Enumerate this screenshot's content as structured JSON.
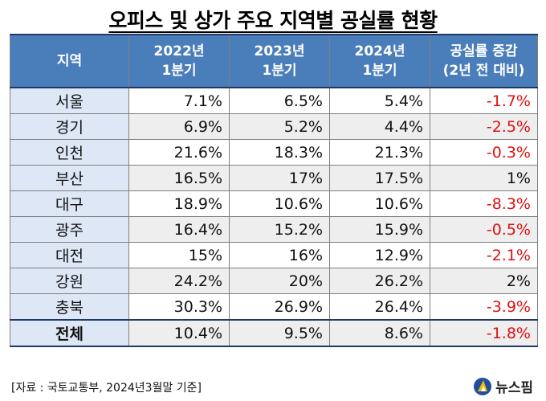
{
  "title": "오피스 및 상가 주요 지역별 공실률 현황",
  "table": {
    "headers": [
      "지역",
      "2022년\n1분기",
      "2023년\n1분기",
      "2024년\n1분기",
      "공실률 증감\n(2년 전 대비)"
    ],
    "rows": [
      {
        "region": "서울",
        "y2022": "7.1%",
        "y2023": "6.5%",
        "y2024": "5.4%",
        "change": "-1.7%"
      },
      {
        "region": "경기",
        "y2022": "6.9%",
        "y2023": "5.2%",
        "y2024": "4.4%",
        "change": "-2.5%"
      },
      {
        "region": "인천",
        "y2022": "21.6%",
        "y2023": "18.3%",
        "y2024": "21.3%",
        "change": "-0.3%"
      },
      {
        "region": "부산",
        "y2022": "16.5%",
        "y2023": "17%",
        "y2024": "17.5%",
        "change": "1%"
      },
      {
        "region": "대구",
        "y2022": "18.9%",
        "y2023": "10.6%",
        "y2024": "10.6%",
        "change": "-8.3%"
      },
      {
        "region": "광주",
        "y2022": "16.4%",
        "y2023": "15.2%",
        "y2024": "15.9%",
        "change": "-0.5%"
      },
      {
        "region": "대전",
        "y2022": "15%",
        "y2023": "16%",
        "y2024": "12.9%",
        "change": "-2.1%"
      },
      {
        "region": "강원",
        "y2022": "24.2%",
        "y2023": "20%",
        "y2024": "26.2%",
        "change": "2%"
      },
      {
        "region": "충북",
        "y2022": "30.3%",
        "y2023": "26.9%",
        "y2024": "26.4%",
        "change": "-3.9%"
      },
      {
        "region": "전체",
        "y2022": "10.4%",
        "y2023": "9.5%",
        "y2024": "8.6%",
        "change": "-1.8%"
      }
    ]
  },
  "source": "[자료 : 국토교통부, 2024년3월말 기준]",
  "logo": {
    "text": "뉴스핌"
  },
  "colors": {
    "header_bg": "#4a7ebb",
    "region_bg": "#dde7f5",
    "negative": "#e01010",
    "alt_row": "#eeeeee"
  }
}
